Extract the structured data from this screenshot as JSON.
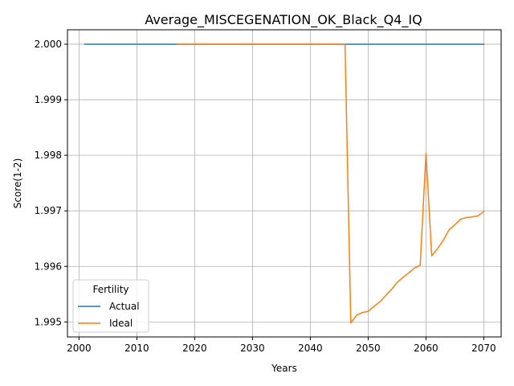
{
  "chart_data": {
    "type": "line",
    "title": "Average_MISCEGENATION_OK_Black_Q4_IQ",
    "xlabel": "Years",
    "ylabel": "Score(1-2)",
    "xlim": [
      1998,
      2073
    ],
    "ylim": [
      1.99473,
      2.00026
    ],
    "xticks": [
      2000,
      2010,
      2020,
      2030,
      2040,
      2050,
      2060,
      2070
    ],
    "xtick_labels": [
      "2000",
      "2010",
      "2020",
      "2030",
      "2040",
      "2050",
      "2060",
      "2070"
    ],
    "yticks": [
      1.995,
      1.996,
      1.997,
      1.998,
      1.999,
      2.0
    ],
    "ytick_labels": [
      "1.995",
      "1.996",
      "1.997",
      "1.998",
      "1.999",
      "2.000"
    ],
    "grid": true,
    "legend": {
      "title": "Fertility",
      "placement": "lower-left"
    },
    "series": [
      {
        "name": "Actual",
        "color": "#1f77b4",
        "x": [
          2001,
          2070
        ],
        "y": [
          2.0,
          2.0
        ]
      },
      {
        "name": "Ideal",
        "color": "#ff7f0e",
        "x": [
          2017,
          2020,
          2025,
          2030,
          2035,
          2040,
          2045,
          2046,
          2047,
          2048,
          2049,
          2050,
          2051,
          2052,
          2053,
          2054,
          2055,
          2056,
          2057,
          2058,
          2059,
          2060,
          2061,
          2062,
          2063,
          2064,
          2065,
          2066,
          2067,
          2068,
          2069,
          2070
        ],
        "y": [
          2.0,
          2.0,
          2.0,
          2.0,
          2.0,
          2.0,
          2.0,
          2.0,
          1.99498,
          1.99512,
          1.99517,
          1.99519,
          1.99528,
          1.99536,
          1.99547,
          1.99558,
          1.99571,
          1.9958,
          1.99588,
          1.99597,
          1.99602,
          1.99803,
          1.99619,
          1.99632,
          1.99647,
          1.99666,
          1.99675,
          1.99685,
          1.99688,
          1.99689,
          1.99691,
          1.99699
        ]
      }
    ]
  }
}
